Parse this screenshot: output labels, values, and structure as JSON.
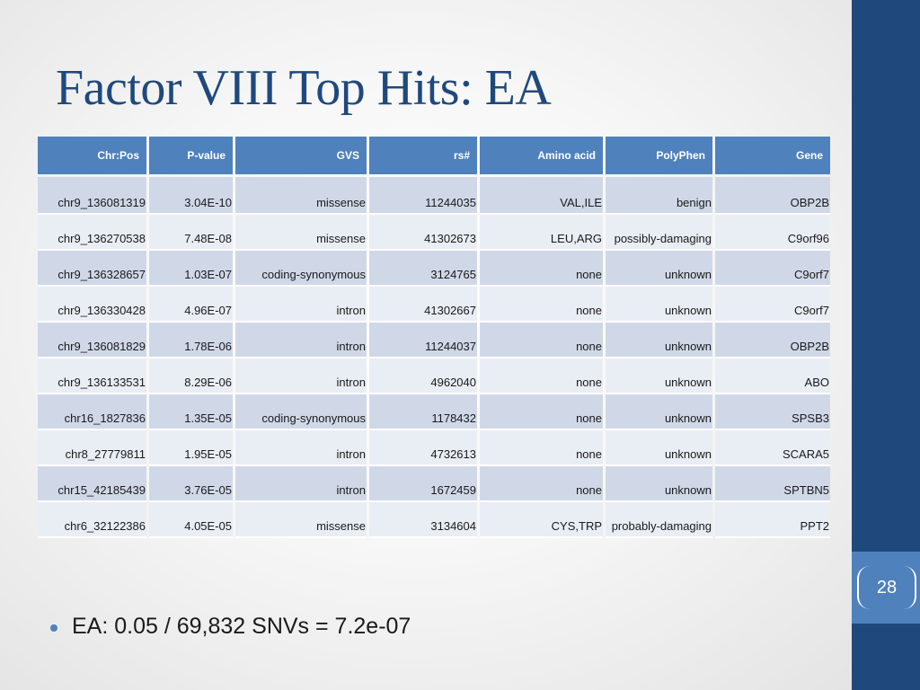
{
  "slide": {
    "title": "Factor VIII Top Hits: EA",
    "number": "28",
    "bullet": "EA: 0.05 / 69,832 SNVs = 7.2e-07"
  },
  "colors": {
    "sidebar": "#1f497d",
    "accent": "#4f81bd",
    "title": "#1f497d",
    "row_odd": "#d0d8e8",
    "row_even": "#e9edf4"
  },
  "table": {
    "headers": [
      "Chr:Pos",
      "P-value",
      "GVS",
      "rs#",
      "Amino acid",
      "PolyPhen",
      "Gene"
    ],
    "rows": [
      [
        "chr9_136081319",
        "3.04E-10",
        "missense",
        "11244035",
        "VAL,ILE",
        "benign",
        "OBP2B"
      ],
      [
        "chr9_136270538",
        "7.48E-08",
        "missense",
        "41302673",
        "LEU,ARG",
        "possibly-damaging",
        "C9orf96"
      ],
      [
        "chr9_136328657",
        "1.03E-07",
        "coding-synonymous",
        "3124765",
        "none",
        "unknown",
        "C9orf7"
      ],
      [
        "chr9_136330428",
        "4.96E-07",
        "intron",
        "41302667",
        "none",
        "unknown",
        "C9orf7"
      ],
      [
        "chr9_136081829",
        "1.78E-06",
        "intron",
        "11244037",
        "none",
        "unknown",
        "OBP2B"
      ],
      [
        "chr9_136133531",
        "8.29E-06",
        "intron",
        "4962040",
        "none",
        "unknown",
        "ABO"
      ],
      [
        "chr16_1827836",
        "1.35E-05",
        "coding-synonymous",
        "1178432",
        "none",
        "unknown",
        "SPSB3"
      ],
      [
        "chr8_27779811",
        "1.95E-05",
        "intron",
        "4732613",
        "none",
        "unknown",
        "SCARA5"
      ],
      [
        "chr15_42185439",
        "3.76E-05",
        "intron",
        "1672459",
        "none",
        "unknown",
        "SPTBN5"
      ],
      [
        "chr6_32122386",
        "4.05E-05",
        "missense",
        "3134604",
        "CYS,TRP",
        "probably-damaging",
        "PPT2"
      ]
    ]
  }
}
